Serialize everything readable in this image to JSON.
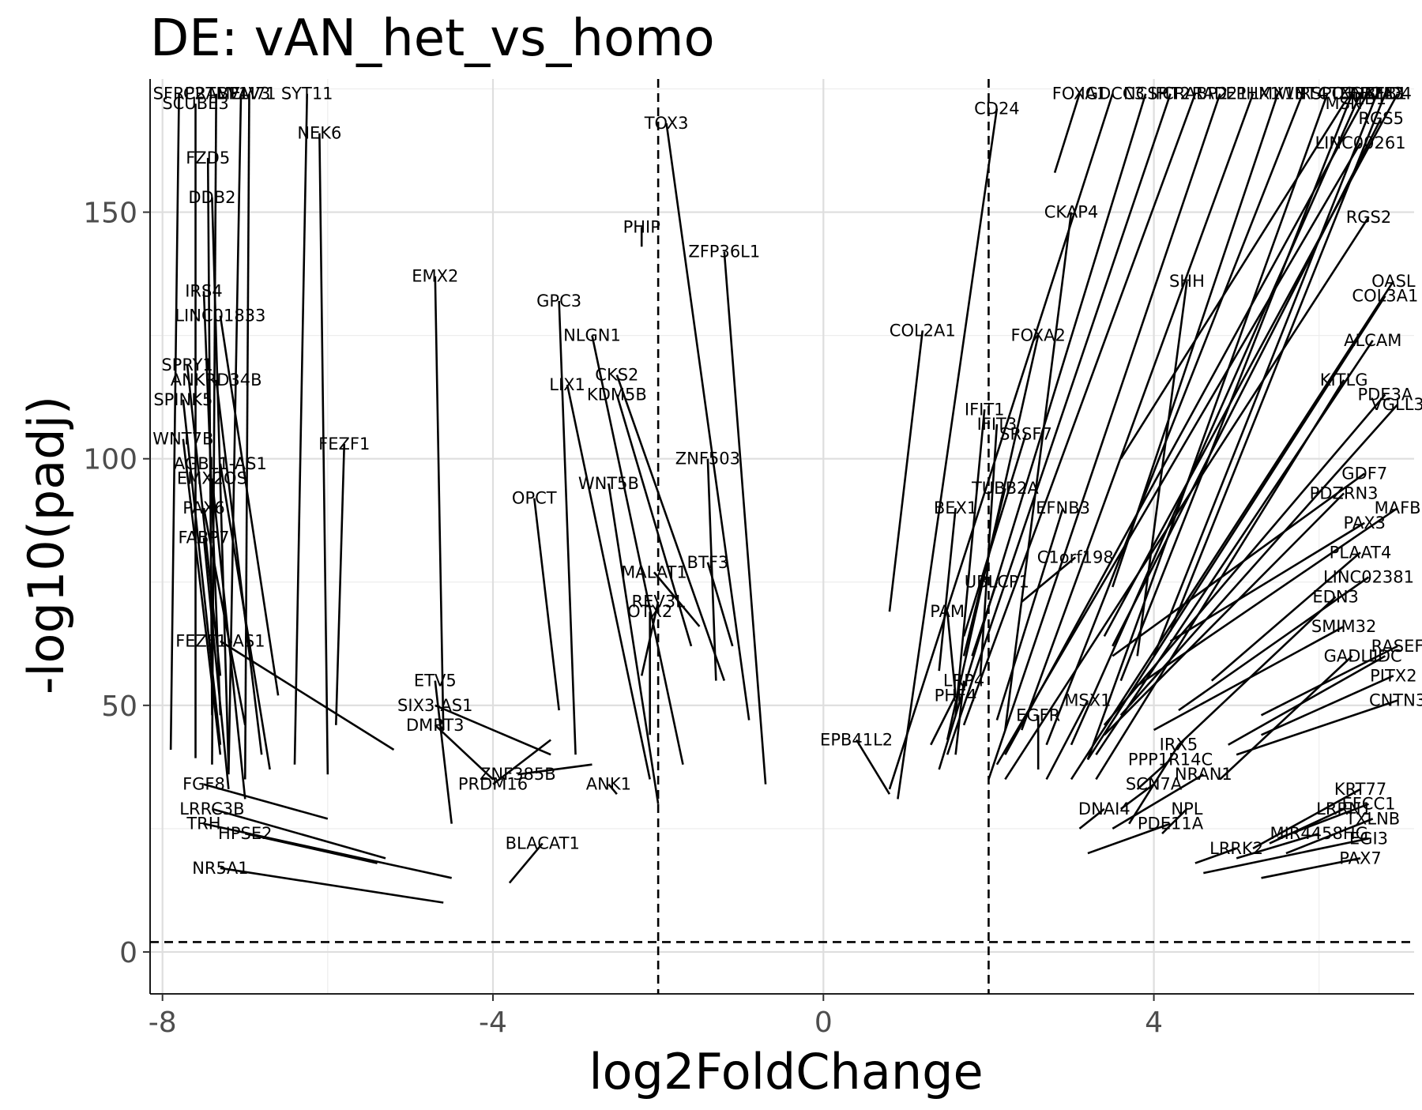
{
  "chart_data": {
    "type": "scatter",
    "title": "DE: vAN_het_vs_homo",
    "xlabel": "log2FoldChange",
    "ylabel": "-log10(padj)",
    "xlim": [
      -8.15,
      7.15
    ],
    "ylim": [
      -8.5,
      177
    ],
    "x_ticks": [
      -8,
      -4,
      0,
      4
    ],
    "x_tick_labels": [
      "-8",
      "-4",
      "0",
      "4"
    ],
    "y_ticks": [
      0,
      50,
      100,
      150
    ],
    "y_tick_labels": [
      "0",
      "50",
      "100",
      "150"
    ],
    "grid": true,
    "legend": "none",
    "thresholds": {
      "log2fc": [
        -2,
        2
      ],
      "padj_log10": 2
    },
    "labels": [
      {
        "label": "SFRP2",
        "x": -7.9,
        "y": 41.0,
        "lx": -7.8,
        "ly": 174
      },
      {
        "label": "SCUBE3",
        "x": -7.6,
        "y": 39.3,
        "lx": -7.6,
        "ly": 172
      },
      {
        "label": "CRABP1",
        "x": -7.4,
        "y": 38.0,
        "lx": -7.35,
        "ly": 174
      },
      {
        "label": "TMEM71",
        "x": -7.2,
        "y": 36.0,
        "lx": -7.05,
        "ly": 174
      },
      {
        "label": "VAV3",
        "x": -7.0,
        "y": 35.0,
        "lx": -6.95,
        "ly": 174
      },
      {
        "label": "SYT11",
        "x": -6.4,
        "y": 38.0,
        "lx": -6.25,
        "ly": 174
      },
      {
        "label": "NEK6",
        "x": -6.0,
        "y": 36.0,
        "lx": -6.1,
        "ly": 166
      },
      {
        "label": "FZD5",
        "x": -7.4,
        "y": 48.0,
        "lx": -7.45,
        "ly": 161
      },
      {
        "label": "DDB2",
        "x": -7.2,
        "y": 37.0,
        "lx": -7.4,
        "ly": 153
      },
      {
        "label": "EMX2",
        "x": -4.6,
        "y": 45.0,
        "lx": -4.7,
        "ly": 137
      },
      {
        "label": "IRS4",
        "x": -7.3,
        "y": 48.0,
        "lx": -7.5,
        "ly": 134
      },
      {
        "label": "LINC01833",
        "x": -6.6,
        "y": 52.0,
        "lx": -7.3,
        "ly": 129
      },
      {
        "label": "SPRY1",
        "x": -7.3,
        "y": 56.0,
        "lx": -7.7,
        "ly": 119
      },
      {
        "label": "ANKRD34B",
        "x": -6.8,
        "y": 40.0,
        "lx": -7.35,
        "ly": 116
      },
      {
        "label": "SPINK5",
        "x": -7.3,
        "y": 42.0,
        "lx": -7.75,
        "ly": 112
      },
      {
        "label": "WNT7B",
        "x": -7.3,
        "y": 40.0,
        "lx": -7.75,
        "ly": 104
      },
      {
        "label": "AGBL1-AS1",
        "x": -6.7,
        "y": 37.0,
        "lx": -7.3,
        "ly": 99
      },
      {
        "label": "FEZF1",
        "x": -5.9,
        "y": 46.0,
        "lx": -5.8,
        "ly": 103
      },
      {
        "label": "EMX2OS",
        "x": -7.0,
        "y": 31.0,
        "lx": -7.4,
        "ly": 96
      },
      {
        "label": "PAX6",
        "x": -7.0,
        "y": 46.0,
        "lx": -7.5,
        "ly": 90
      },
      {
        "label": "FABP7",
        "x": -7.2,
        "y": 33.0,
        "lx": -7.5,
        "ly": 84
      },
      {
        "label": "FEZF1-AS1",
        "x": -5.2,
        "y": 41.0,
        "lx": -7.3,
        "ly": 63
      },
      {
        "label": "ETV5",
        "x": -4.5,
        "y": 26.0,
        "lx": -4.7,
        "ly": 55
      },
      {
        "label": "SIX3-AS1",
        "x": -3.3,
        "y": 40.0,
        "lx": -4.7,
        "ly": 50
      },
      {
        "label": "DMRT3",
        "x": -4.0,
        "y": 35.0,
        "lx": -4.7,
        "ly": 46
      },
      {
        "label": "PRDM16",
        "x": -3.3,
        "y": 43.0,
        "lx": -4.0,
        "ly": 34
      },
      {
        "label": "ZNF385B",
        "x": -2.8,
        "y": 38.0,
        "lx": -3.7,
        "ly": 36
      },
      {
        "label": "ANK1",
        "x": -2.5,
        "y": 32.0,
        "lx": -2.6,
        "ly": 34
      },
      {
        "label": "FGF8",
        "x": -6.0,
        "y": 27.0,
        "lx": -7.5,
        "ly": 34
      },
      {
        "label": "LRRC3B",
        "x": -5.3,
        "y": 19.0,
        "lx": -7.4,
        "ly": 29
      },
      {
        "label": "TRH",
        "x": -4.5,
        "y": 15.0,
        "lx": -7.5,
        "ly": 26
      },
      {
        "label": "HPSE2",
        "x": -5.4,
        "y": 18.0,
        "lx": -7.0,
        "ly": 24
      },
      {
        "label": "BLACAT1",
        "x": -3.8,
        "y": 14.0,
        "lx": -3.4,
        "ly": 22
      },
      {
        "label": "NR5A1",
        "x": -4.6,
        "y": 10.0,
        "lx": -7.3,
        "ly": 17
      },
      {
        "label": "TOX3",
        "x": -0.9,
        "y": 47.0,
        "lx": -1.9,
        "ly": 168
      },
      {
        "label": "PHIP",
        "x": -2.2,
        "y": 143.0,
        "lx": -2.2,
        "ly": 147
      },
      {
        "label": "ZFP36L1",
        "x": -0.7,
        "y": 34.0,
        "lx": -1.2,
        "ly": 142
      },
      {
        "label": "GPC3",
        "x": -3.0,
        "y": 40.0,
        "lx": -3.2,
        "ly": 132
      },
      {
        "label": "NLGN1",
        "x": -1.7,
        "y": 38.0,
        "lx": -2.8,
        "ly": 125
      },
      {
        "label": "CKS2",
        "x": -1.2,
        "y": 55.0,
        "lx": -2.5,
        "ly": 117
      },
      {
        "label": "LIX1",
        "x": -2.1,
        "y": 35.0,
        "lx": -3.1,
        "ly": 115
      },
      {
        "label": "KDM5B",
        "x": -1.6,
        "y": 62.0,
        "lx": -2.5,
        "ly": 113
      },
      {
        "label": "ZNF503",
        "x": -1.3,
        "y": 55.0,
        "lx": -1.4,
        "ly": 100
      },
      {
        "label": "WNT5B",
        "x": -2.0,
        "y": 30.0,
        "lx": -2.6,
        "ly": 95
      },
      {
        "label": "OPCT",
        "x": -3.2,
        "y": 49.0,
        "lx": -3.5,
        "ly": 92
      },
      {
        "label": "BTF3",
        "x": -1.1,
        "y": 62.0,
        "lx": -1.4,
        "ly": 79
      },
      {
        "label": "MALAT1",
        "x": -1.5,
        "y": 66.0,
        "lx": -2.05,
        "ly": 77
      },
      {
        "label": "REV3L",
        "x": -2.2,
        "y": 56.0,
        "lx": -2.0,
        "ly": 71
      },
      {
        "label": "OTX2",
        "x": -2.1,
        "y": 44.0,
        "lx": -2.1,
        "ly": 69
      },
      {
        "label": "CD24",
        "x": 0.9,
        "y": 31.0,
        "lx": 2.1,
        "ly": 171
      },
      {
        "label": "FOXA1",
        "x": 2.8,
        "y": 158.0,
        "lx": 3.1,
        "ly": 174
      },
      {
        "label": "IGDCC3",
        "x": 0.8,
        "y": 33.0,
        "lx": 3.5,
        "ly": 174
      },
      {
        "label": "NCSP",
        "x": 1.4,
        "y": 37.0,
        "lx": 3.9,
        "ly": 174
      },
      {
        "label": "IFIT2",
        "x": 1.5,
        "y": 40.0,
        "lx": 4.2,
        "ly": 174
      },
      {
        "label": "CRABP2",
        "x": 1.7,
        "y": 46.0,
        "lx": 4.5,
        "ly": 174
      },
      {
        "label": "RAD21",
        "x": 2.0,
        "y": 35.0,
        "lx": 4.8,
        "ly": 174
      },
      {
        "label": "EPHX1",
        "x": 2.4,
        "y": 45.0,
        "lx": 5.2,
        "ly": 174
      },
      {
        "label": "LMX1B",
        "x": 3.5,
        "y": 74.0,
        "lx": 5.5,
        "ly": 174
      },
      {
        "label": "WNT4",
        "x": 2.7,
        "y": 42.0,
        "lx": 5.8,
        "ly": 174
      },
      {
        "label": "RSPO3",
        "x": 3.2,
        "y": 39.0,
        "lx": 6.1,
        "ly": 174
      },
      {
        "label": "CTNNB1",
        "x": 3.6,
        "y": 55.0,
        "lx": 6.4,
        "ly": 174
      },
      {
        "label": "GATA3",
        "x": 4.0,
        "y": 60.0,
        "lx": 6.7,
        "ly": 174
      },
      {
        "label": "ZEB2",
        "x": 3.0,
        "y": 42.0,
        "lx": 6.5,
        "ly": 174
      },
      {
        "label": "ZEB1",
        "x": 4.2,
        "y": 65.0,
        "lx": 6.8,
        "ly": 174
      },
      {
        "label": "ID4",
        "x": 3.4,
        "y": 64.0,
        "lx": 6.95,
        "ly": 174
      },
      {
        "label": "MSN",
        "x": 3.6,
        "y": 100.0,
        "lx": 6.3,
        "ly": 172
      },
      {
        "label": "ZEB1",
        "x": 2.2,
        "y": 40.0,
        "lx": 6.55,
        "ly": 173
      },
      {
        "label": "RGS5",
        "x": 3.5,
        "y": 62.0,
        "lx": 6.75,
        "ly": 169
      },
      {
        "label": "LINC00261",
        "x": 2.1,
        "y": 38.0,
        "lx": 6.5,
        "ly": 164
      },
      {
        "label": "CKAP4",
        "x": 2.2,
        "y": 45.0,
        "lx": 3.0,
        "ly": 150
      },
      {
        "label": "COL2A1",
        "x": 0.8,
        "y": 69.0,
        "lx": 1.2,
        "ly": 126
      },
      {
        "label": "SHH",
        "x": 3.8,
        "y": 60.0,
        "lx": 4.4,
        "ly": 136
      },
      {
        "label": "FOXA2",
        "x": 1.5,
        "y": 43.0,
        "lx": 2.6,
        "ly": 125
      },
      {
        "label": "IFIT1",
        "x": 1.6,
        "y": 48.0,
        "lx": 1.95,
        "ly": 110
      },
      {
        "label": "IFIT3",
        "x": 1.9,
        "y": 56.0,
        "lx": 2.1,
        "ly": 107
      },
      {
        "label": "SRSF7",
        "x": 1.7,
        "y": 64.0,
        "lx": 2.45,
        "ly": 105
      },
      {
        "label": "TUBB2A",
        "x": 1.7,
        "y": 60.0,
        "lx": 2.2,
        "ly": 94
      },
      {
        "label": "BEX1",
        "x": 1.4,
        "y": 57.0,
        "lx": 1.6,
        "ly": 90
      },
      {
        "label": "EFNB3",
        "x": 2.1,
        "y": 47.0,
        "lx": 2.9,
        "ly": 90
      },
      {
        "label": "RGS2",
        "x": 2.2,
        "y": 35.0,
        "lx": 6.6,
        "ly": 149
      },
      {
        "label": "OASL",
        "x": 3.0,
        "y": 35.0,
        "lx": 6.9,
        "ly": 136
      },
      {
        "label": "COL3A1",
        "x": 3.2,
        "y": 39.0,
        "lx": 6.8,
        "ly": 133
      },
      {
        "label": "ALCAM",
        "x": 3.3,
        "y": 40.0,
        "lx": 6.65,
        "ly": 124
      },
      {
        "label": "KITLG",
        "x": 3.3,
        "y": 35.0,
        "lx": 6.3,
        "ly": 116
      },
      {
        "label": "PDE3A",
        "x": 3.4,
        "y": 46.0,
        "lx": 6.8,
        "ly": 113
      },
      {
        "label": "VGLL3",
        "x": 3.6,
        "y": 48.0,
        "lx": 6.95,
        "ly": 111
      },
      {
        "label": "GDF7",
        "x": 3.5,
        "y": 60.0,
        "lx": 6.55,
        "ly": 97
      },
      {
        "label": "PDZRN3",
        "x": 3.4,
        "y": 44.0,
        "lx": 6.3,
        "ly": 93
      },
      {
        "label": "MAFB",
        "x": 3.8,
        "y": 54.0,
        "lx": 6.95,
        "ly": 90
      },
      {
        "label": "PAX3",
        "x": 4.2,
        "y": 63.0,
        "lx": 6.55,
        "ly": 87
      },
      {
        "label": "C1orf198",
        "x": 2.4,
        "y": 71.0,
        "lx": 3.05,
        "ly": 80
      },
      {
        "label": "UBLCP1",
        "x": 1.8,
        "y": 60.0,
        "lx": 2.1,
        "ly": 75
      },
      {
        "label": "PAM",
        "x": 1.6,
        "y": 52.0,
        "lx": 1.5,
        "ly": 69
      },
      {
        "label": "PLAAT4",
        "x": 4.7,
        "y": 55.0,
        "lx": 6.5,
        "ly": 81
      },
      {
        "label": "LINC02381",
        "x": 4.3,
        "y": 49.0,
        "lx": 6.6,
        "ly": 76
      },
      {
        "label": "EDN3",
        "x": 4.3,
        "y": 42.0,
        "lx": 6.2,
        "ly": 72
      },
      {
        "label": "SMIM32",
        "x": 4.0,
        "y": 45.0,
        "lx": 6.3,
        "ly": 66
      },
      {
        "label": "RASEF",
        "x": 5.3,
        "y": 48.0,
        "lx": 6.95,
        "ly": 62
      },
      {
        "label": "GADL1",
        "x": 4.8,
        "y": 35.0,
        "lx": 6.4,
        "ly": 60
      },
      {
        "label": "LDC",
        "x": 4.9,
        "y": 42.0,
        "lx": 6.8,
        "ly": 60
      },
      {
        "label": "PITX2",
        "x": 5.3,
        "y": 44.0,
        "lx": 6.9,
        "ly": 56
      },
      {
        "label": "CNTN3",
        "x": 5.0,
        "y": 40.0,
        "lx": 6.95,
        "ly": 51
      },
      {
        "label": "LRP4",
        "x": 1.6,
        "y": 40.0,
        "lx": 1.7,
        "ly": 55
      },
      {
        "label": "PHF4",
        "x": 1.3,
        "y": 42.0,
        "lx": 1.6,
        "ly": 52
      },
      {
        "label": "EGFR",
        "x": 2.6,
        "y": 37.0,
        "lx": 2.6,
        "ly": 48
      },
      {
        "label": "MSX1",
        "x": 2.7,
        "y": 35.0,
        "lx": 3.2,
        "ly": 51
      },
      {
        "label": "EPB41L2",
        "x": 0.8,
        "y": 32.0,
        "lx": 0.4,
        "ly": 43
      },
      {
        "label": "IRX5",
        "x": 3.7,
        "y": 26.0,
        "lx": 4.3,
        "ly": 42
      },
      {
        "label": "PPP1R14C",
        "x": 3.8,
        "y": 33.0,
        "lx": 4.2,
        "ly": 39
      },
      {
        "label": "NRAN1",
        "x": 3.5,
        "y": 25.0,
        "lx": 4.6,
        "ly": 36
      },
      {
        "label": "SCN7A",
        "x": 3.6,
        "y": 29.0,
        "lx": 4.0,
        "ly": 34
      },
      {
        "label": "DNAI4",
        "x": 3.1,
        "y": 25.0,
        "lx": 3.4,
        "ly": 29
      },
      {
        "label": "NPL",
        "x": 4.1,
        "y": 24.0,
        "lx": 4.4,
        "ly": 29
      },
      {
        "label": "PDE11A",
        "x": 3.2,
        "y": 20.0,
        "lx": 4.2,
        "ly": 26
      },
      {
        "label": "KRT77",
        "x": 5.2,
        "y": 21.0,
        "lx": 6.5,
        "ly": 33
      },
      {
        "label": "EFCC1",
        "x": 5.5,
        "y": 23.0,
        "lx": 6.6,
        "ly": 30
      },
      {
        "label": "LRRN1",
        "x": 5.4,
        "y": 22.0,
        "lx": 6.3,
        "ly": 29
      },
      {
        "label": "TXLNB",
        "x": 5.6,
        "y": 20.0,
        "lx": 6.65,
        "ly": 27
      },
      {
        "label": "MIR4458HG",
        "x": 5.0,
        "y": 19.0,
        "lx": 6.0,
        "ly": 24
      },
      {
        "label": "LRRK2",
        "x": 4.5,
        "y": 18.0,
        "lx": 5.0,
        "ly": 21
      },
      {
        "label": "EGI3",
        "x": 4.6,
        "y": 16.0,
        "lx": 6.6,
        "ly": 23
      },
      {
        "label": "PAX7",
        "x": 5.3,
        "y": 15.0,
        "lx": 6.5,
        "ly": 19
      }
    ]
  }
}
